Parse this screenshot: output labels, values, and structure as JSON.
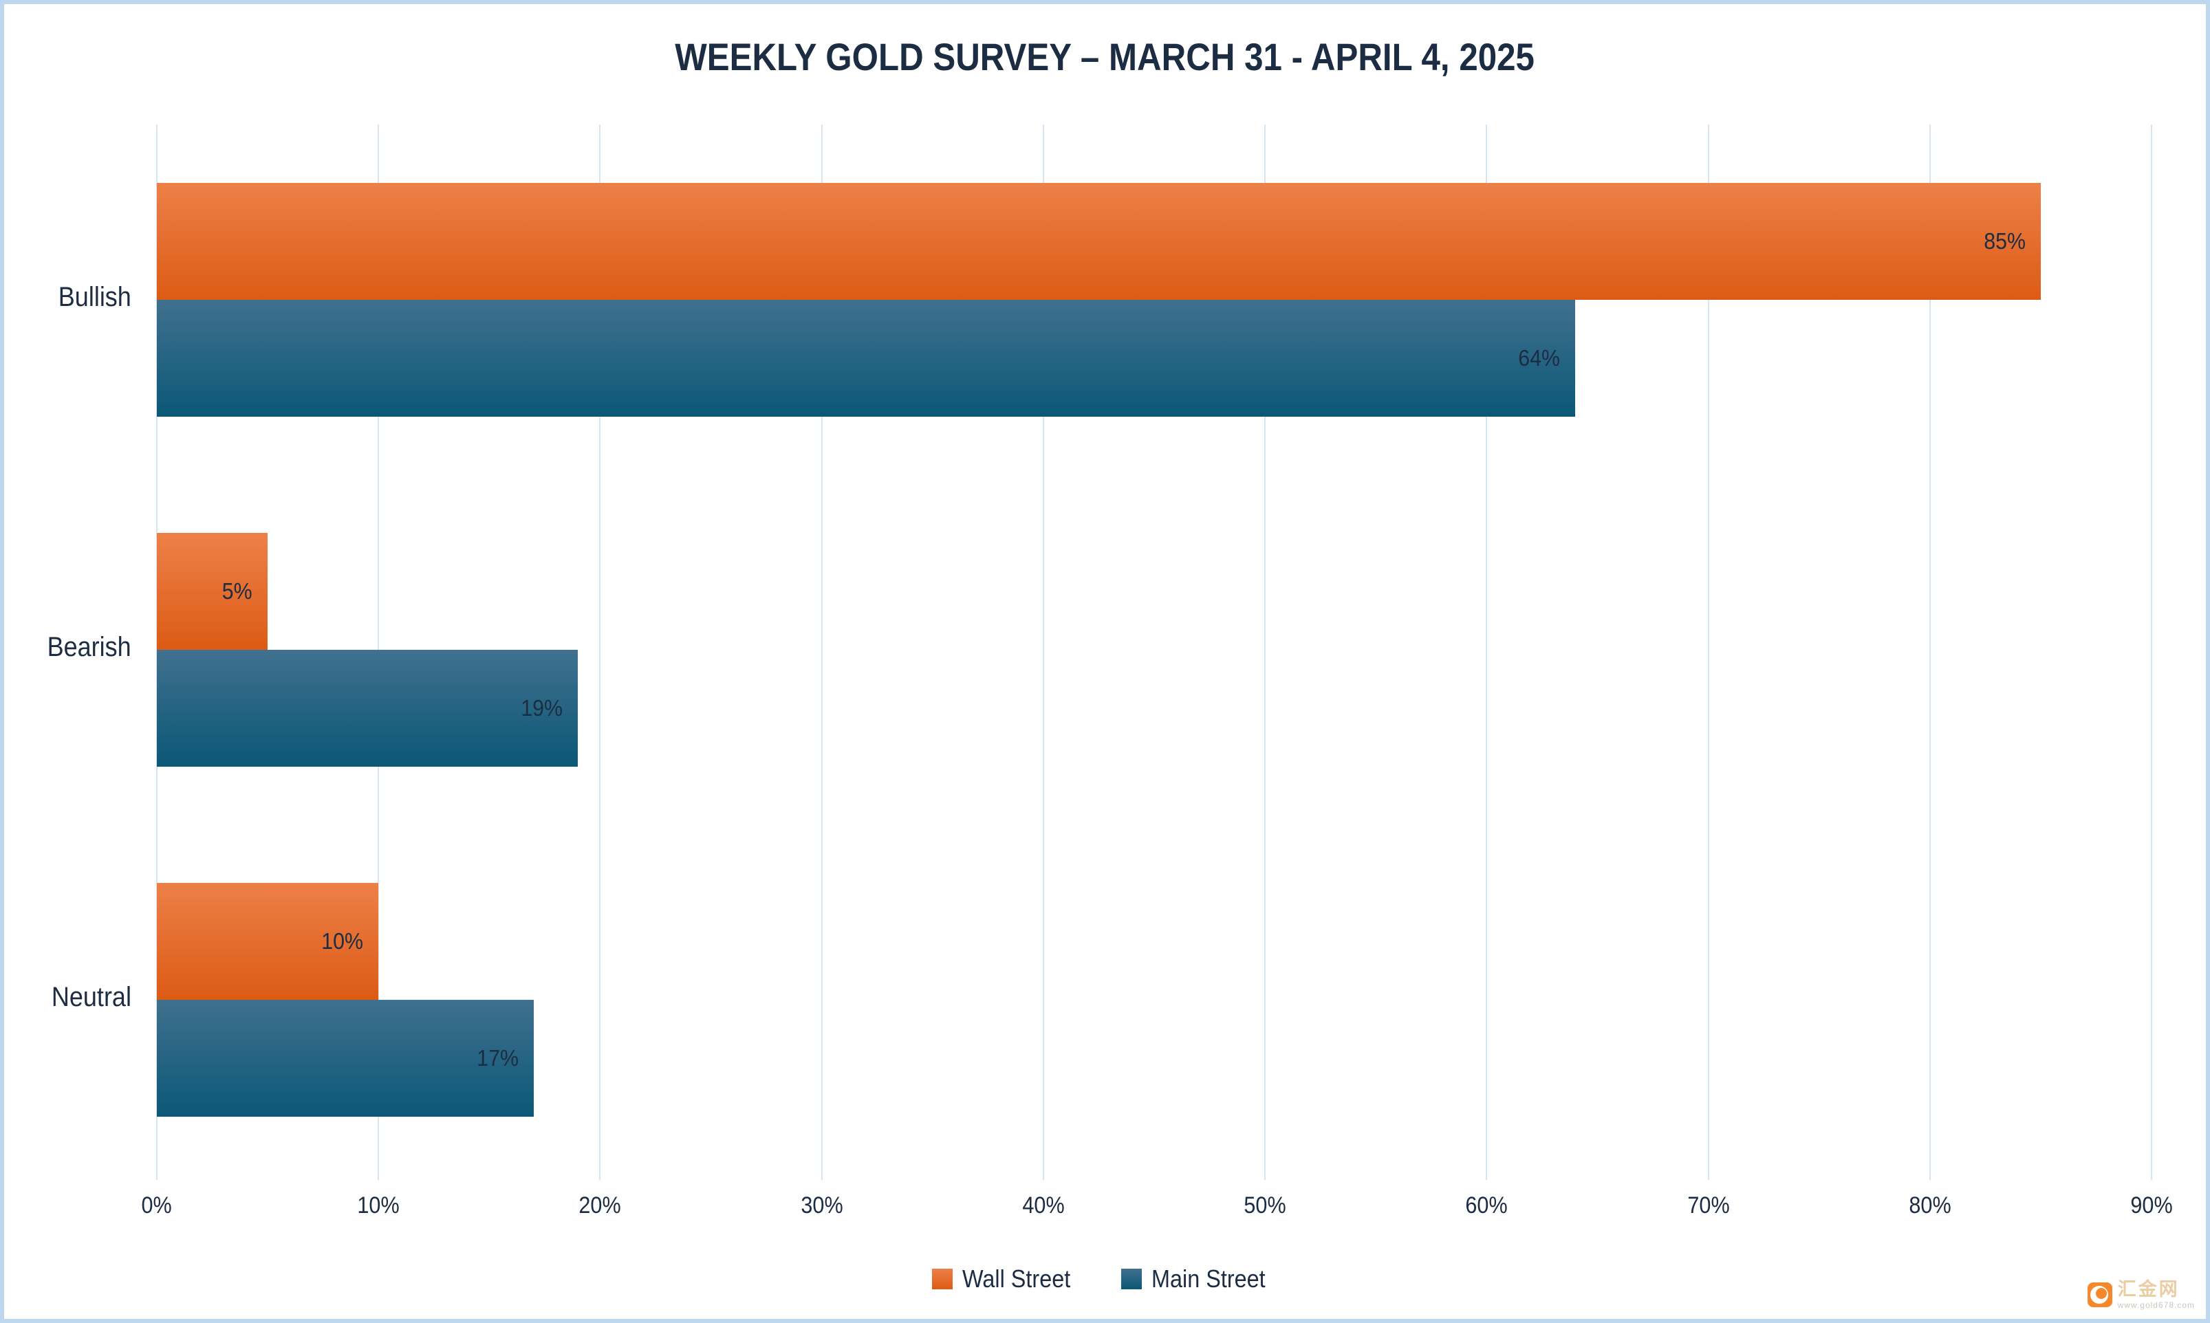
{
  "page": {
    "background": "#FFFFFF",
    "frame_border_color": "#BDD7EE",
    "text_color": "#1C2C42",
    "gridline_color": "#D9E4F1"
  },
  "chart_data": {
    "type": "bar",
    "orientation": "horizontal",
    "title": "WEEKLY GOLD SURVEY – MARCH 31 - APRIL 4, 2025",
    "categories": [
      "Bullish",
      "Bearish",
      "Neutral"
    ],
    "series": [
      {
        "name": "Wall Street",
        "color_top": "#ED8048",
        "color_bottom": "#DC5B15",
        "values": [
          85,
          5,
          10
        ],
        "labels": [
          "85%",
          "5%",
          "10%"
        ]
      },
      {
        "name": "Main Street",
        "color_top": "#40708F",
        "color_bottom": "#0B5876",
        "values": [
          64,
          19,
          17
        ],
        "labels": [
          "64%",
          "19%",
          "17%"
        ]
      }
    ],
    "x_axis": {
      "min": 0,
      "max": 90,
      "tick_labels": [
        "0%",
        "10%",
        "20%",
        "30%",
        "40%",
        "50%",
        "60%",
        "70%",
        "80%",
        "90%"
      ],
      "grid": true
    },
    "legend": {
      "position": "bottom",
      "items": [
        "Wall Street",
        "Main Street"
      ]
    }
  },
  "watermark": {
    "site_name": "汇金网",
    "url": "www.gold678.com"
  }
}
